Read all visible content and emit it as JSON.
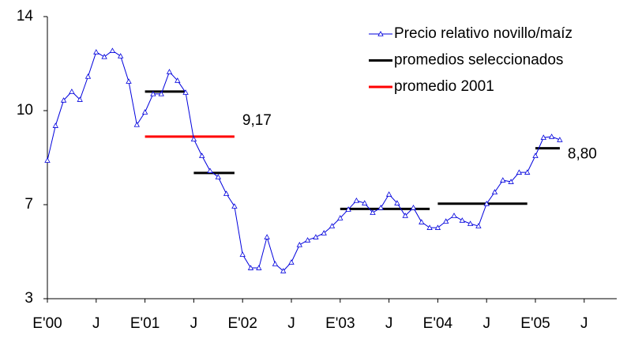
{
  "chart_data": {
    "type": "line",
    "x": [
      0,
      1,
      2,
      3,
      4,
      5,
      6,
      7,
      8,
      9,
      10,
      11,
      12,
      13,
      14,
      15,
      16,
      17,
      18,
      19,
      20,
      21,
      22,
      23,
      24,
      25,
      26,
      27,
      28,
      29,
      30,
      31,
      32,
      33,
      34,
      35,
      36,
      37,
      38,
      39,
      40,
      41,
      42,
      43,
      44,
      45,
      46,
      47,
      48,
      49,
      50,
      51,
      52,
      53,
      54,
      55,
      56,
      57,
      58,
      59,
      60,
      61,
      62,
      63
    ],
    "series": [
      {
        "name": "Precio relativo novillo/maíz",
        "color": "#0000dd",
        "values": [
          8.41,
          9.52,
          10.44,
          10.81,
          10.47,
          11.45,
          12.49,
          12.29,
          12.55,
          12.32,
          11.24,
          9.55,
          9.95,
          10.71,
          10.71,
          11.65,
          11.28,
          10.77,
          9.09,
          8.56,
          8.08,
          7.88,
          7.35,
          6.93,
          4.88,
          4.31,
          4.31,
          5.62,
          4.48,
          4.18,
          4.55,
          5.29,
          5.49,
          5.62,
          5.79,
          6.09,
          6.43,
          6.8,
          7.13,
          7.05,
          6.66,
          6.87,
          7.33,
          7.05,
          6.53,
          6.87,
          6.26,
          6.02,
          6.02,
          6.29,
          6.53,
          6.33,
          6.19,
          6.09,
          7.03,
          7.4,
          7.78,
          7.73,
          8.03,
          8.03,
          8.56,
          9.14,
          9.17,
          9.07
        ]
      }
    ],
    "averages": [
      {
        "name": "promedios seleccionados",
        "color": "#000000",
        "segments": [
          {
            "x": [
              12,
              17
            ],
            "value": 10.81
          },
          {
            "x": [
              18,
              23
            ],
            "value": 8.01
          },
          {
            "x": [
              36,
              47
            ],
            "value": 6.82
          },
          {
            "x": [
              48,
              59
            ],
            "value": 7.03
          },
          {
            "x": [
              60,
              63
            ],
            "value": 8.8,
            "value_label": "8,80"
          }
        ]
      },
      {
        "name": "promedio 2001",
        "color": "#ff0000",
        "segments": [
          {
            "x": [
              12,
              23
            ],
            "value": 9.17,
            "value_label": "9,17"
          }
        ]
      }
    ],
    "xlim": [
      0,
      70
    ],
    "xticks": [
      {
        "value": 0,
        "label": "E'00"
      },
      {
        "value": 6,
        "label": "J"
      },
      {
        "value": 12,
        "label": "E'01"
      },
      {
        "value": 18,
        "label": "J"
      },
      {
        "value": 24,
        "label": "E'02"
      },
      {
        "value": 30,
        "label": "J"
      },
      {
        "value": 36,
        "label": "E'03"
      },
      {
        "value": 42,
        "label": "J"
      },
      {
        "value": 48,
        "label": "E'04"
      },
      {
        "value": 54,
        "label": "J"
      },
      {
        "value": 60,
        "label": "E'05"
      },
      {
        "value": 66,
        "label": "J"
      }
    ],
    "ylim": [
      3,
      14
    ],
    "yticks": [
      3,
      7,
      10,
      14
    ]
  }
}
